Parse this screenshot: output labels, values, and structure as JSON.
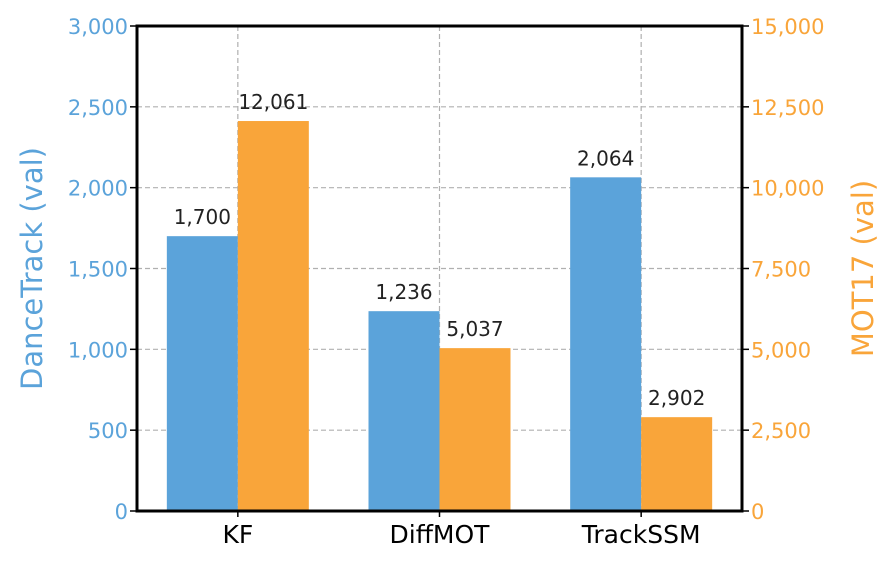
{
  "chart_data": {
    "type": "bar",
    "categories": [
      "KF",
      "DiffMOT",
      "TrackSSM"
    ],
    "series": [
      {
        "name": "DanceTrack (val)",
        "axis": "left",
        "color": "#5ba3da",
        "values": [
          1700,
          1236,
          2064
        ],
        "labels": [
          "1,700",
          "1,236",
          "2,064"
        ]
      },
      {
        "name": "MOT17 (val)",
        "axis": "right",
        "color": "#f9a53a",
        "values": [
          12061,
          5037,
          2902
        ],
        "labels": [
          "12,061",
          "5,037",
          "2,902"
        ]
      }
    ],
    "left_axis": {
      "label": "DanceTrack (val)",
      "color": "#5ba3da",
      "ylim": [
        0,
        3000
      ],
      "ticks": [
        0,
        500,
        1000,
        1500,
        2000,
        2500,
        3000
      ],
      "tick_labels": [
        "0",
        "500",
        "1,000",
        "1,500",
        "2,000",
        "2,500",
        "3,000"
      ]
    },
    "right_axis": {
      "label": "MOT17 (val)",
      "color": "#f9a53a",
      "ylim": [
        0,
        15000
      ],
      "ticks": [
        0,
        2500,
        5000,
        7500,
        10000,
        12500,
        15000
      ],
      "tick_labels": [
        "0",
        "2,500",
        "5,000",
        "7,500",
        "10,000",
        "12,500",
        "15,000"
      ]
    },
    "grid": true,
    "grid_style": "dashed"
  }
}
